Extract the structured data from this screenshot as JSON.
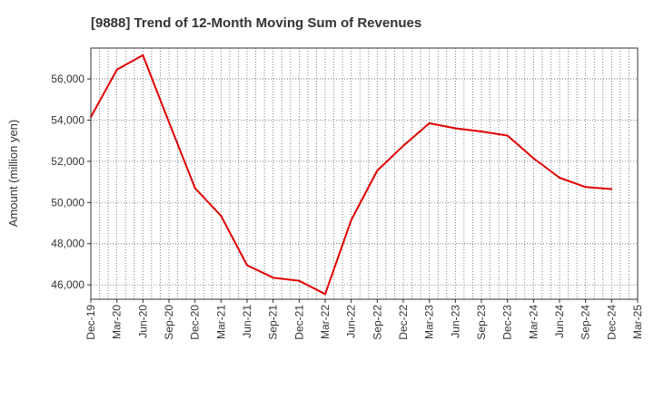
{
  "chart_data": {
    "type": "line",
    "title": "[9888]  Trend of 12-Month Moving Sum of Revenues",
    "xlabel": "",
    "ylabel": "Amount (million yen)",
    "categories": [
      "Dec-19",
      "Mar-20",
      "Jun-20",
      "Sep-20",
      "Dec-20",
      "Mar-21",
      "Jun-21",
      "Sep-21",
      "Dec-21",
      "Mar-22",
      "Jun-22",
      "Sep-22",
      "Dec-22",
      "Mar-23",
      "Jun-23",
      "Sep-23",
      "Dec-23",
      "Mar-24",
      "Jun-24",
      "Sep-24",
      "Dec-24",
      "Mar-25"
    ],
    "series": [
      {
        "name": "",
        "color": "#e00000",
        "values": [
          54150,
          56450,
          57150,
          53900,
          50700,
          49350,
          46950,
          46350,
          46200,
          45550,
          49150,
          51550,
          52750,
          53850,
          53600,
          53450,
          53250,
          52150,
          51200,
          50750,
          50650,
          null
        ]
      }
    ],
    "ylim": [
      45300,
      57500
    ],
    "yticks": [
      46000,
      48000,
      50000,
      52000,
      54000,
      56000
    ],
    "ytick_labels": [
      "46,000",
      "48,000",
      "50,000",
      "52,000",
      "54,000",
      "56,000"
    ],
    "grid": true,
    "legend": "none"
  }
}
